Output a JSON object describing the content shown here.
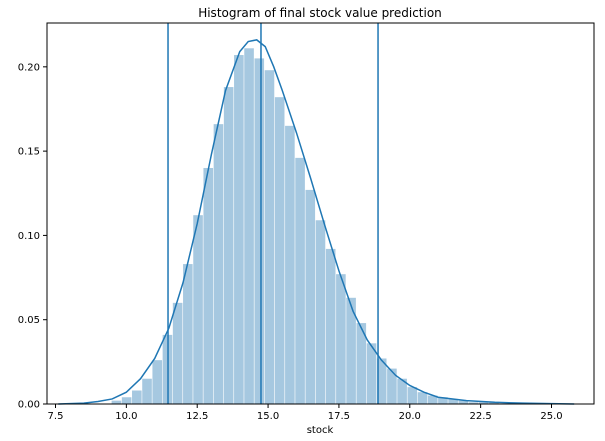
{
  "chart_data": {
    "type": "bar",
    "title": "Histogram of final stock value prediction",
    "xlabel": "stock",
    "ylabel": "",
    "xlim": [
      7.2,
      26.5
    ],
    "ylim": [
      0,
      0.226
    ],
    "grid": false,
    "x_ticks": [
      7.5,
      10.0,
      12.5,
      15.0,
      17.5,
      20.0,
      22.5,
      25.0
    ],
    "x_tick_labels": [
      "7.5",
      "10.0",
      "12.5",
      "15.0",
      "17.5",
      "20.0",
      "22.5",
      "25.0"
    ],
    "y_ticks": [
      0.0,
      0.05,
      0.1,
      0.15,
      0.2
    ],
    "y_tick_labels": [
      "0.00",
      "0.05",
      "0.10",
      "0.15",
      "0.20"
    ],
    "bar_color": "#a6c8e0",
    "line_color": "#1f77b4",
    "bin_width": 0.36,
    "histogram": {
      "bin_starts": [
        9.48,
        9.84,
        10.2,
        10.56,
        10.92,
        11.28,
        11.64,
        12.0,
        12.36,
        12.72,
        13.08,
        13.44,
        13.8,
        14.16,
        14.52,
        14.88,
        15.24,
        15.6,
        15.96,
        16.32,
        16.68,
        17.04,
        17.4,
        17.76,
        18.12,
        18.48,
        18.84,
        19.2,
        19.56,
        19.92,
        20.28,
        20.64,
        21.0,
        21.36,
        21.72,
        22.08,
        22.44,
        22.8
      ],
      "values": [
        0.002,
        0.004,
        0.008,
        0.015,
        0.026,
        0.041,
        0.06,
        0.083,
        0.112,
        0.14,
        0.166,
        0.188,
        0.207,
        0.211,
        0.205,
        0.198,
        0.182,
        0.165,
        0.146,
        0.127,
        0.109,
        0.092,
        0.077,
        0.063,
        0.048,
        0.036,
        0.027,
        0.021,
        0.015,
        0.01,
        0.007,
        0.005,
        0.004,
        0.003,
        0.002,
        0.001,
        0.001,
        0.001
      ]
    },
    "kde": {
      "x": [
        7.6,
        8.5,
        9.0,
        9.5,
        10.0,
        10.5,
        11.0,
        11.5,
        12.0,
        12.5,
        13.0,
        13.5,
        14.0,
        14.3,
        14.6,
        14.9,
        15.2,
        15.5,
        16.0,
        16.5,
        17.0,
        17.5,
        18.0,
        18.5,
        19.0,
        19.5,
        20.0,
        20.5,
        21.0,
        22.0,
        23.0,
        24.0,
        25.0,
        25.8
      ],
      "y": [
        0.0,
        0.0005,
        0.0015,
        0.003,
        0.007,
        0.015,
        0.027,
        0.045,
        0.072,
        0.107,
        0.148,
        0.186,
        0.209,
        0.215,
        0.216,
        0.212,
        0.2,
        0.186,
        0.161,
        0.134,
        0.106,
        0.079,
        0.055,
        0.038,
        0.026,
        0.017,
        0.011,
        0.007,
        0.004,
        0.002,
        0.001,
        0.0005,
        0.0002,
        0.0
      ]
    },
    "vertical_lines": [
      11.47,
      14.75,
      18.88
    ]
  }
}
